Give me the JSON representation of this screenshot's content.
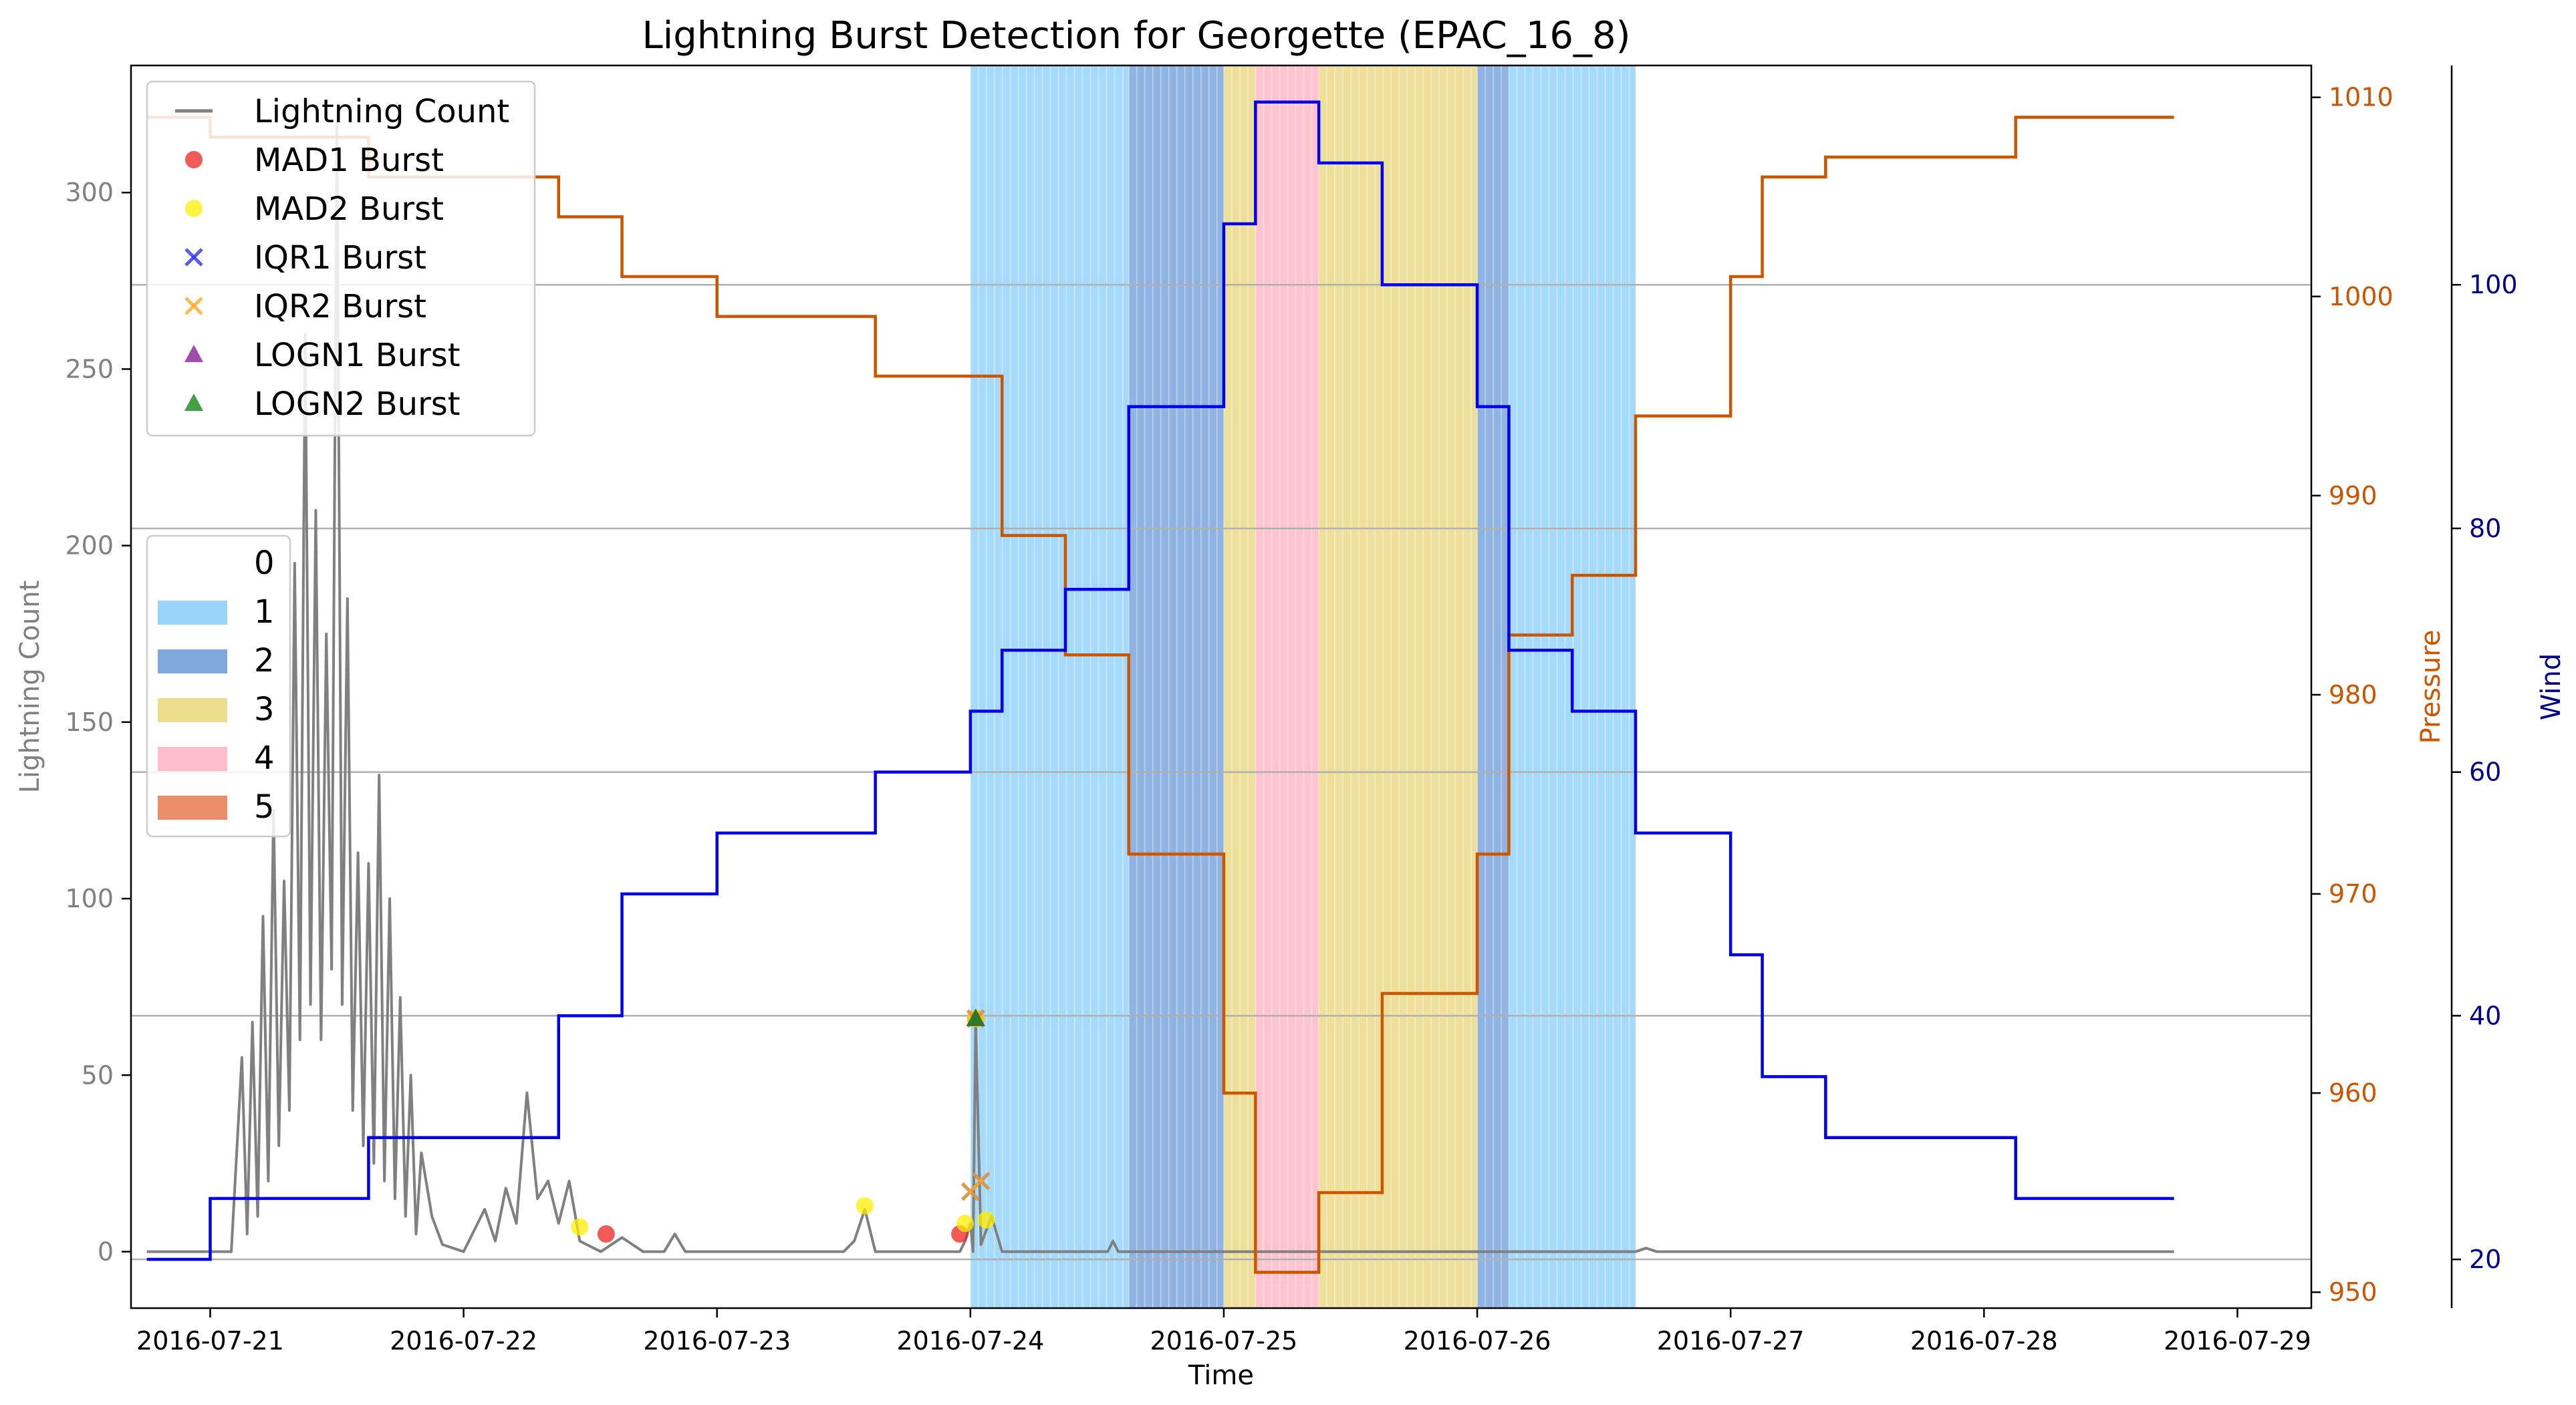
{
  "chart_data": {
    "type": "line",
    "title": "Lightning Burst Detection for Georgette (EPAC_16_8)",
    "xlabel": "Time",
    "ylabel_left": "Lightning Count",
    "ylabel_right_pressure": "Pressure",
    "ylabel_right_wind": "Wind",
    "xlim": [
      "2016-07-20 16:30",
      "2016-07-29 07:00"
    ],
    "x_ticks": [
      "2016-07-21",
      "2016-07-22",
      "2016-07-23",
      "2016-07-24",
      "2016-07-25",
      "2016-07-26",
      "2016-07-27",
      "2016-07-28",
      "2016-07-29"
    ],
    "left_axis": {
      "ylim": [
        -16,
        336
      ],
      "ticks": [
        0,
        50,
        100,
        150,
        200,
        250,
        300
      ]
    },
    "pressure_axis": {
      "ylim": [
        949.2,
        1011.6
      ],
      "ticks": [
        950,
        960,
        970,
        980,
        990,
        1000,
        1010
      ]
    },
    "wind_axis": {
      "ylim": [
        16.0,
        118.0
      ],
      "ticks": [
        20,
        40,
        60,
        80,
        100
      ]
    },
    "grid": "horizontal lines at wind ticks",
    "colors": {
      "lightning": "#808080",
      "pressure": "#cc5500",
      "wind": "#0000ee",
      "cat1": "#87cefa",
      "cat2": "#6a9bd8",
      "cat3": "#e8d67a",
      "cat4": "#ffb0c0",
      "cat5": "#e9794f"
    },
    "legend_top": {
      "placement": "top-left",
      "entries": [
        {
          "label": "Lightning Count",
          "marker": "line",
          "color": "#808080"
        },
        {
          "label": "MAD1 Burst",
          "marker": "circle",
          "color": "#ee2222"
        },
        {
          "label": "MAD2 Burst",
          "marker": "circle",
          "color": "#ffee00"
        },
        {
          "label": "IQR1 Burst",
          "marker": "x",
          "color": "#3333ee"
        },
        {
          "label": "IQR2 Burst",
          "marker": "x",
          "color": "#ffaa22"
        },
        {
          "label": "LOGN1 Burst",
          "marker": "triangle",
          "color": "#882299"
        },
        {
          "label": "LOGN2 Burst",
          "marker": "triangle",
          "color": "#118811"
        }
      ]
    },
    "legend_category": {
      "placement": "center-left",
      "entries": [
        {
          "label": "0",
          "color": ""
        },
        {
          "label": "1",
          "color": "#87cefa"
        },
        {
          "label": "2",
          "color": "#6a9bd8"
        },
        {
          "label": "3",
          "color": "#e8d67a"
        },
        {
          "label": "4",
          "color": "#ffb0c0"
        },
        {
          "label": "5",
          "color": "#e9794f"
        }
      ]
    },
    "category_spans": [
      {
        "category": 1,
        "start": "2016-07-24 00:00",
        "end": "2016-07-24 15:00"
      },
      {
        "category": 2,
        "start": "2016-07-24 15:00",
        "end": "2016-07-25 00:00"
      },
      {
        "category": 3,
        "start": "2016-07-25 00:00",
        "end": "2016-07-25 03:00"
      },
      {
        "category": 4,
        "start": "2016-07-25 03:00",
        "end": "2016-07-25 09:00"
      },
      {
        "category": 3,
        "start": "2016-07-25 09:00",
        "end": "2016-07-26 00:00"
      },
      {
        "category": 2,
        "start": "2016-07-26 00:00",
        "end": "2016-07-26 03:00"
      },
      {
        "category": 1,
        "start": "2016-07-26 03:00",
        "end": "2016-07-26 15:00"
      }
    ],
    "pressure_series": {
      "name": "Pressure",
      "points": [
        [
          "2016-07-20 18:00",
          1009
        ],
        [
          "2016-07-21 00:00",
          1008
        ],
        [
          "2016-07-21 15:00",
          1006
        ],
        [
          "2016-07-22 09:00",
          1004
        ],
        [
          "2016-07-22 15:00",
          1001
        ],
        [
          "2016-07-23 00:00",
          999
        ],
        [
          "2016-07-23 15:00",
          996
        ],
        [
          "2016-07-24 03:00",
          988
        ],
        [
          "2016-07-24 09:00",
          982
        ],
        [
          "2016-07-24 15:00",
          972
        ],
        [
          "2016-07-25 00:00",
          960
        ],
        [
          "2016-07-25 03:00",
          951
        ],
        [
          "2016-07-25 09:00",
          955
        ],
        [
          "2016-07-25 15:00",
          965
        ],
        [
          "2016-07-26 00:00",
          972
        ],
        [
          "2016-07-26 03:00",
          983
        ],
        [
          "2016-07-26 09:00",
          986
        ],
        [
          "2016-07-26 15:00",
          994
        ],
        [
          "2016-07-27 00:00",
          1001
        ],
        [
          "2016-07-27 03:00",
          1006
        ],
        [
          "2016-07-27 09:00",
          1007
        ],
        [
          "2016-07-28 03:00",
          1009
        ],
        [
          "2016-07-28 18:00",
          1009
        ]
      ]
    },
    "wind_series": {
      "name": "Wind",
      "points": [
        [
          "2016-07-20 18:00",
          20
        ],
        [
          "2016-07-21 00:00",
          25
        ],
        [
          "2016-07-21 15:00",
          30
        ],
        [
          "2016-07-22 09:00",
          40
        ],
        [
          "2016-07-22 15:00",
          50
        ],
        [
          "2016-07-23 00:00",
          55
        ],
        [
          "2016-07-23 15:00",
          60
        ],
        [
          "2016-07-24 00:00",
          65
        ],
        [
          "2016-07-24 03:00",
          70
        ],
        [
          "2016-07-24 09:00",
          75
        ],
        [
          "2016-07-24 15:00",
          90
        ],
        [
          "2016-07-25 00:00",
          105
        ],
        [
          "2016-07-25 03:00",
          115
        ],
        [
          "2016-07-25 09:00",
          110
        ],
        [
          "2016-07-25 15:00",
          100
        ],
        [
          "2016-07-26 00:00",
          90
        ],
        [
          "2016-07-26 03:00",
          70
        ],
        [
          "2016-07-26 09:00",
          65
        ],
        [
          "2016-07-26 15:00",
          55
        ],
        [
          "2016-07-27 00:00",
          45
        ],
        [
          "2016-07-27 03:00",
          35
        ],
        [
          "2016-07-27 09:00",
          30
        ],
        [
          "2016-07-28 03:00",
          25
        ],
        [
          "2016-07-28 18:00",
          25
        ]
      ]
    },
    "lightning_series": {
      "name": "Lightning Count",
      "points": [
        [
          "2016-07-20 18:00",
          0
        ],
        [
          "2016-07-21 02:00",
          0
        ],
        [
          "2016-07-21 03:00",
          55
        ],
        [
          "2016-07-21 03:30",
          5
        ],
        [
          "2016-07-21 04:00",
          65
        ],
        [
          "2016-07-21 04:30",
          10
        ],
        [
          "2016-07-21 05:00",
          95
        ],
        [
          "2016-07-21 05:30",
          20
        ],
        [
          "2016-07-21 06:00",
          125
        ],
        [
          "2016-07-21 06:30",
          30
        ],
        [
          "2016-07-21 07:00",
          105
        ],
        [
          "2016-07-21 07:30",
          40
        ],
        [
          "2016-07-21 08:00",
          195
        ],
        [
          "2016-07-21 08:30",
          60
        ],
        [
          "2016-07-21 09:00",
          260
        ],
        [
          "2016-07-21 09:30",
          70
        ],
        [
          "2016-07-21 10:00",
          210
        ],
        [
          "2016-07-21 10:30",
          60
        ],
        [
          "2016-07-21 11:00",
          175
        ],
        [
          "2016-07-21 11:30",
          80
        ],
        [
          "2016-07-21 12:00",
          320
        ],
        [
          "2016-07-21 12:30",
          70
        ],
        [
          "2016-07-21 13:00",
          185
        ],
        [
          "2016-07-21 13:30",
          40
        ],
        [
          "2016-07-21 14:00",
          113
        ],
        [
          "2016-07-21 14:30",
          30
        ],
        [
          "2016-07-21 15:00",
          110
        ],
        [
          "2016-07-21 15:30",
          25
        ],
        [
          "2016-07-21 16:00",
          135
        ],
        [
          "2016-07-21 16:30",
          20
        ],
        [
          "2016-07-21 17:00",
          100
        ],
        [
          "2016-07-21 17:30",
          15
        ],
        [
          "2016-07-21 18:00",
          72
        ],
        [
          "2016-07-21 18:30",
          10
        ],
        [
          "2016-07-21 19:00",
          50
        ],
        [
          "2016-07-21 19:30",
          5
        ],
        [
          "2016-07-21 20:00",
          28
        ],
        [
          "2016-07-21 21:00",
          10
        ],
        [
          "2016-07-21 22:00",
          2
        ],
        [
          "2016-07-22 00:00",
          0
        ],
        [
          "2016-07-22 02:00",
          12
        ],
        [
          "2016-07-22 03:00",
          3
        ],
        [
          "2016-07-22 04:00",
          18
        ],
        [
          "2016-07-22 05:00",
          8
        ],
        [
          "2016-07-22 06:00",
          45
        ],
        [
          "2016-07-22 07:00",
          15
        ],
        [
          "2016-07-22 08:00",
          20
        ],
        [
          "2016-07-22 09:00",
          8
        ],
        [
          "2016-07-22 10:00",
          20
        ],
        [
          "2016-07-22 11:00",
          3
        ],
        [
          "2016-07-22 13:00",
          0
        ],
        [
          "2016-07-22 15:00",
          4
        ],
        [
          "2016-07-22 17:00",
          0
        ],
        [
          "2016-07-22 19:00",
          0
        ],
        [
          "2016-07-22 20:00",
          5
        ],
        [
          "2016-07-22 21:00",
          0
        ],
        [
          "2016-07-23 12:00",
          0
        ],
        [
          "2016-07-23 13:00",
          3
        ],
        [
          "2016-07-23 14:00",
          12
        ],
        [
          "2016-07-23 15:00",
          0
        ],
        [
          "2016-07-23 23:00",
          0
        ],
        [
          "2016-07-23 23:30",
          3
        ],
        [
          "2016-07-24 00:00",
          8
        ],
        [
          "2016-07-24 00:15",
          0
        ],
        [
          "2016-07-24 00:30",
          66
        ],
        [
          "2016-07-24 01:00",
          2
        ],
        [
          "2016-07-24 02:00",
          10
        ],
        [
          "2016-07-24 03:00",
          0
        ],
        [
          "2016-07-24 13:00",
          0
        ],
        [
          "2016-07-24 13:30",
          3
        ],
        [
          "2016-07-24 14:00",
          0
        ],
        [
          "2016-07-26 15:00",
          0
        ],
        [
          "2016-07-26 16:00",
          1
        ],
        [
          "2016-07-26 17:00",
          0
        ],
        [
          "2016-07-28 18:00",
          0
        ]
      ]
    },
    "bursts": [
      {
        "method": "MAD1",
        "time": "2016-07-22 13:30",
        "value": 5
      },
      {
        "method": "MAD1",
        "time": "2016-07-23 23:00",
        "value": 5
      },
      {
        "method": "MAD1",
        "time": "2016-07-24 00:30",
        "value": 66
      },
      {
        "method": "MAD2",
        "time": "2016-07-22 11:00",
        "value": 7
      },
      {
        "method": "MAD2",
        "time": "2016-07-23 14:00",
        "value": 13
      },
      {
        "method": "MAD2",
        "time": "2016-07-23 23:30",
        "value": 8
      },
      {
        "method": "MAD2",
        "time": "2016-07-24 00:30",
        "value": 66
      },
      {
        "method": "MAD2",
        "time": "2016-07-24 01:30",
        "value": 9
      },
      {
        "method": "IQR1",
        "time": "2016-07-24 00:00",
        "value": 17
      },
      {
        "method": "IQR1",
        "time": "2016-07-24 01:00",
        "value": 20
      },
      {
        "method": "IQR1",
        "time": "2016-07-24 00:30",
        "value": 66
      },
      {
        "method": "IQR2",
        "time": "2016-07-24 00:00",
        "value": 17
      },
      {
        "method": "IQR2",
        "time": "2016-07-24 01:00",
        "value": 20
      },
      {
        "method": "IQR2",
        "time": "2016-07-24 00:30",
        "value": 66
      },
      {
        "method": "LOGN1",
        "time": "2016-07-24 00:30",
        "value": 66
      },
      {
        "method": "LOGN2",
        "time": "2016-07-24 00:30",
        "value": 66
      }
    ]
  }
}
